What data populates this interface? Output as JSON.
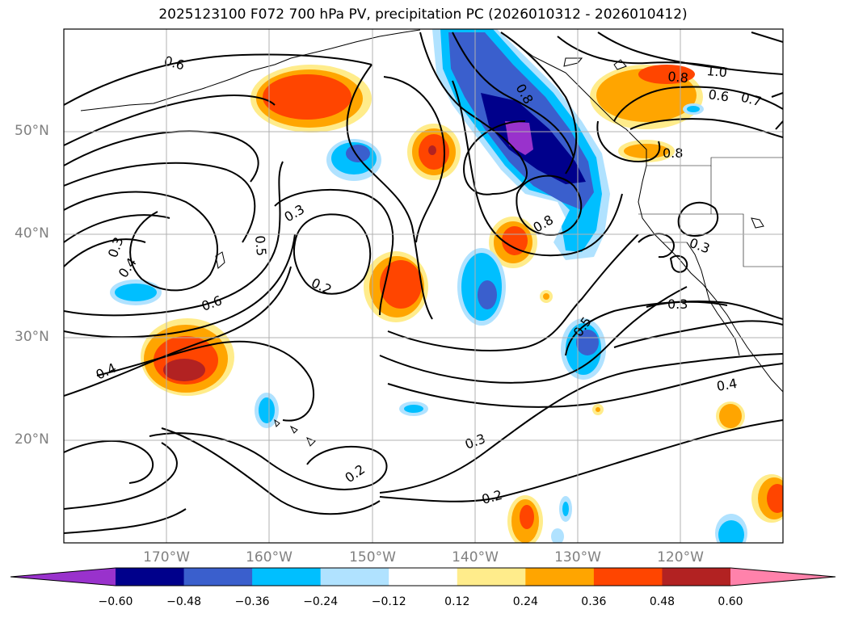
{
  "title": "2025123100 F072 700 hPa PV, precipitation PC (2026010312 - 2026010412)",
  "map": {
    "projection": "plate carree",
    "lon_range": [
      -180,
      -110
    ],
    "lat_range": [
      10,
      60
    ],
    "gridlines": true,
    "lat_labels": [
      "50°N",
      "40°N",
      "30°N",
      "20°N"
    ],
    "lon_labels": [
      "170°W",
      "160°W",
      "150°W",
      "140°W",
      "130°W",
      "120°W"
    ],
    "pv_contour_labels": [
      "0.6",
      "1.0",
      "0.8",
      "0.6",
      "0.7",
      "0.8",
      "0.8",
      "0.3",
      "0.5",
      "0.3",
      "0.4",
      "0.2",
      "0.6",
      "0.4",
      "0.8",
      "0.3",
      "0.3",
      "0.5",
      "0.4",
      "0.3",
      "0.2",
      "0.2"
    ]
  },
  "colorbar": {
    "extend": "both",
    "tick_labels": [
      "−0.60",
      "−0.48",
      "−0.36",
      "−0.24",
      "−0.12",
      "0.12",
      "0.24",
      "0.36",
      "0.48",
      "0.60"
    ],
    "colors": [
      "#9932cc",
      "#00008b",
      "#3a5fcd",
      "#00bfff",
      "#b0e2ff",
      "#ffffff",
      "#ffec8b",
      "#ffa500",
      "#ff4500",
      "#b22222",
      "#ff82ab"
    ]
  }
}
